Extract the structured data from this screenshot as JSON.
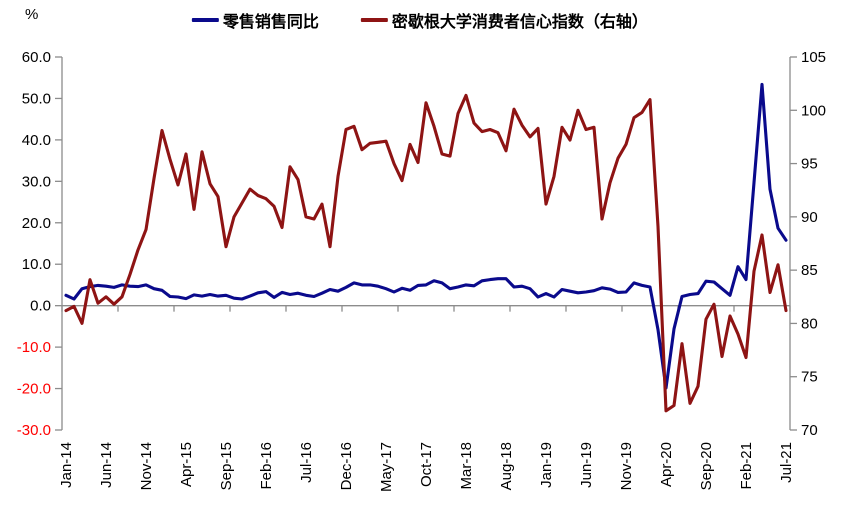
{
  "chart_data": {
    "type": "line",
    "title": "",
    "axis_color": "#8c8c8c",
    "left_axis": {
      "unit": "%",
      "min": -30,
      "max": 60,
      "step": 10,
      "tick_labels": [
        "60.0",
        "50.0",
        "40.0",
        "30.0",
        "20.0",
        "10.0",
        "0.0",
        "-10.0",
        "-20.0",
        "-30.0"
      ],
      "tick_color": "#000000",
      "negative_tick_color": "#ff0000"
    },
    "right_axis": {
      "min": 70,
      "max": 105,
      "step": 5,
      "tick_labels": [
        "105",
        "100",
        "95",
        "90",
        "85",
        "80",
        "75",
        "70"
      ],
      "tick_color": "#000000"
    },
    "x": {
      "n_points": 91,
      "first_month": "Jan-14",
      "last_month": "Jul-21",
      "label_interval": 5,
      "tick_mark_segments": 13,
      "tick_labels": [
        "Jan-14",
        "Jun-14",
        "Nov-14",
        "Apr-15",
        "Sep-15",
        "Feb-16",
        "Jul-16",
        "Dec-16",
        "May-17",
        "Oct-17",
        "Mar-18",
        "Aug-18",
        "Jan-19",
        "Jun-19",
        "Nov-19",
        "Apr-20",
        "Sep-20",
        "Feb-21",
        "Jul-21"
      ]
    },
    "series": [
      {
        "name": "零售销售同比",
        "axis": "left",
        "color": "#0a0a8c",
        "values": [
          2.5,
          1.6,
          4.1,
          4.6,
          4.9,
          4.7,
          4.4,
          5.0,
          4.7,
          4.6,
          5.0,
          4.1,
          3.7,
          2.2,
          2.1,
          1.7,
          2.6,
          2.3,
          2.7,
          2.3,
          2.5,
          1.8,
          1.6,
          2.3,
          3.1,
          3.4,
          2.0,
          3.2,
          2.7,
          3.0,
          2.5,
          2.2,
          3.0,
          3.9,
          3.5,
          4.4,
          5.5,
          5.0,
          5.0,
          4.7,
          4.1,
          3.3,
          4.2,
          3.7,
          4.9,
          5.0,
          6.0,
          5.5,
          4.1,
          4.5,
          5.0,
          4.8,
          6.0,
          6.3,
          6.5,
          6.5,
          4.5,
          4.7,
          4.1,
          2.1,
          2.9,
          2.1,
          3.9,
          3.5,
          3.1,
          3.3,
          3.6,
          4.3,
          4.0,
          3.2,
          3.3,
          5.5,
          4.9,
          4.5,
          -5.8,
          -19.9,
          -5.6,
          2.2,
          2.7,
          2.9,
          5.9,
          5.7,
          4.1,
          2.5,
          9.4,
          6.3,
          29.7,
          53.4,
          28.1,
          18.7,
          15.8
        ]
      },
      {
        "name": "密歇根大学消费者信心指数（右轴）",
        "axis": "right",
        "color": "#8e1414",
        "values": [
          81.2,
          81.6,
          80.0,
          84.1,
          81.9,
          82.5,
          81.8,
          82.5,
          84.6,
          86.9,
          88.8,
          93.6,
          98.1,
          95.4,
          93.0,
          95.9,
          90.7,
          96.1,
          93.1,
          91.9,
          87.2,
          90.0,
          91.3,
          92.6,
          92.0,
          91.7,
          91.0,
          89.0,
          94.7,
          93.5,
          90.0,
          89.8,
          91.2,
          87.2,
          93.8,
          98.2,
          98.5,
          96.3,
          96.9,
          97.0,
          97.1,
          95.0,
          93.4,
          96.8,
          95.1,
          100.7,
          98.5,
          95.9,
          95.7,
          99.7,
          101.4,
          98.8,
          98.0,
          98.2,
          97.9,
          96.2,
          100.1,
          98.6,
          97.5,
          98.3,
          91.2,
          93.8,
          98.4,
          97.2,
          100.0,
          98.2,
          98.4,
          89.8,
          93.2,
          95.5,
          96.8,
          99.3,
          99.8,
          101.0,
          89.1,
          71.8,
          72.3,
          78.1,
          72.5,
          74.1,
          80.4,
          81.8,
          76.9,
          80.7,
          79.0,
          76.8,
          84.9,
          88.3,
          82.9,
          85.5,
          81.2
        ]
      }
    ]
  }
}
